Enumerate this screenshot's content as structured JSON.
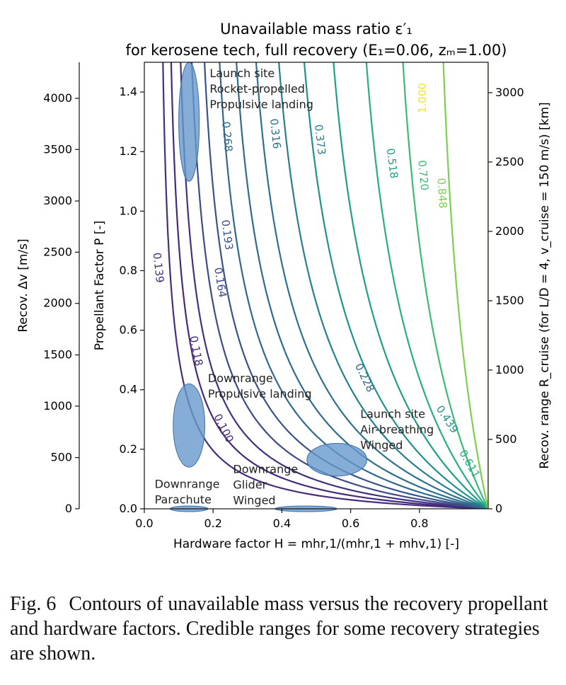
{
  "chart_data": {
    "type": "contour",
    "title_line1": "Unavailable mass ratio ε′₁",
    "title_line2": "for kerosene tech, full recovery (E₁=0.06, zₘ=1.00)",
    "xlabel": "Hardware factor H = mhr,1/(mhr,1 + mhv,1) [-]",
    "ylabel": "Propellant Factor P [-]",
    "left_outer_label": "Recov. Δv [m/s]",
    "right_label": "Recov. range R_cruise (for L/D = 4, v_cruise = 150 m/s) [km]",
    "xlim": [
      0.0,
      1.0
    ],
    "ylim": [
      0.0,
      1.5
    ],
    "x_ticks": [
      "0.0",
      "0.2",
      "0.4",
      "0.6",
      "0.8"
    ],
    "y_ticks": [
      "0.0",
      "0.2",
      "0.4",
      "0.6",
      "0.8",
      "1.0",
      "1.2",
      "1.4"
    ],
    "dv_ticks": [
      {
        "label": "0",
        "P": 0.0
      },
      {
        "label": "500",
        "P": 0.172
      },
      {
        "label": "1000",
        "P": 0.345
      },
      {
        "label": "1500",
        "P": 0.517
      },
      {
        "label": "2000",
        "P": 0.69
      },
      {
        "label": "2500",
        "P": 0.862
      },
      {
        "label": "3000",
        "P": 1.034
      },
      {
        "label": "3500",
        "P": 1.207
      },
      {
        "label": "4000",
        "P": 1.379
      }
    ],
    "range_ticks": [
      {
        "label": "0",
        "P": 0.0
      },
      {
        "label": "500",
        "P": 0.233
      },
      {
        "label": "1000",
        "P": 0.466
      },
      {
        "label": "1500",
        "P": 0.699
      },
      {
        "label": "2000",
        "P": 0.932
      },
      {
        "label": "2500",
        "P": 1.165
      },
      {
        "label": "3000",
        "P": 1.398
      }
    ],
    "contours": [
      {
        "level": 0.1,
        "label": "0.100",
        "color": "#472d7b",
        "label_at": [
          0.23,
          0.27
        ]
      },
      {
        "level": 0.118,
        "label": "0.118",
        "color": "#45297a",
        "label_at": [
          0.15,
          0.53
        ]
      },
      {
        "level": 0.139,
        "label": "0.139",
        "color": "#43307e",
        "label_at": [
          0.04,
          0.81
        ]
      },
      {
        "level": 0.164,
        "label": "0.164",
        "color": "#3e4a89",
        "label_at": [
          0.22,
          0.76
        ]
      },
      {
        "level": 0.193,
        "label": "0.193",
        "color": "#3a528b",
        "label_at": [
          0.24,
          0.92
        ]
      },
      {
        "level": 0.228,
        "label": "0.228",
        "color": "#31688e",
        "label_at": [
          0.64,
          0.44
        ]
      },
      {
        "level": 0.268,
        "label": "0.268",
        "color": "#2f6b8e",
        "label_at": [
          0.24,
          1.25
        ]
      },
      {
        "level": 0.316,
        "label": "0.316",
        "color": "#2c728e",
        "label_at": [
          0.38,
          1.26
        ]
      },
      {
        "level": 0.373,
        "label": "0.373",
        "color": "#277f8e",
        "label_at": [
          0.51,
          1.24
        ]
      },
      {
        "level": 0.439,
        "label": "0.439",
        "color": "#21918c",
        "label_at": [
          0.88,
          0.3
        ]
      },
      {
        "level": 0.518,
        "label": "0.518",
        "color": "#1f9e89",
        "label_at": [
          0.72,
          1.16
        ]
      },
      {
        "level": 0.611,
        "label": "0.611",
        "color": "#28ae80",
        "label_at": [
          0.945,
          0.15
        ]
      },
      {
        "level": 0.72,
        "label": "0.720",
        "color": "#3bbb75",
        "label_at": [
          0.81,
          1.12
        ]
      },
      {
        "level": 0.848,
        "label": "0.848",
        "color": "#7ad151",
        "label_at": [
          0.865,
          1.06
        ]
      },
      {
        "level": 1.0,
        "label": "1.000",
        "color": "#f0e51a",
        "label_at": [
          0.81,
          1.38
        ]
      }
    ],
    "regions": [
      {
        "name": "Launch site rocket-propelled propulsive landing",
        "cx": 0.13,
        "cy": 1.3,
        "rx": 0.03,
        "ry": 0.2,
        "lines": [
          "Launch site",
          "Rocket-propelled",
          "Propulsive landing"
        ],
        "label_at": [
          0.19,
          1.45
        ]
      },
      {
        "name": "Downrange propulsive landing",
        "cx": 0.13,
        "cy": 0.28,
        "rx": 0.046,
        "ry": 0.14,
        "lines": [
          "Downrange",
          "Propulsive landing"
        ],
        "label_at": [
          0.185,
          0.425
        ]
      },
      {
        "name": "Launch site air-breathing winged",
        "cx": 0.56,
        "cy": 0.165,
        "rx": 0.087,
        "ry": 0.055,
        "lines": [
          "Launch site",
          "Air-breathing",
          "Winged"
        ],
        "label_at": [
          0.628,
          0.305
        ]
      },
      {
        "name": "Downrange glider winged",
        "cx": 0.47,
        "cy": 0.0,
        "rx": 0.09,
        "ry": 0.009,
        "lines": [
          "Downrange",
          "Glider",
          "Winged"
        ],
        "label_at": [
          0.258,
          0.12
        ]
      },
      {
        "name": "Downrange parachute",
        "cx": 0.13,
        "cy": 0.0,
        "rx": 0.055,
        "ry": 0.009,
        "lines": [
          "Downrange",
          "Parachute"
        ],
        "label_at": [
          0.03,
          0.07
        ]
      }
    ],
    "region_color": "#6699cc"
  },
  "caption": {
    "label": "Fig. 6",
    "text": "Contours of unavailable mass versus the recovery propellant and hardware factors. Credible ranges for some recovery strategies are shown."
  }
}
